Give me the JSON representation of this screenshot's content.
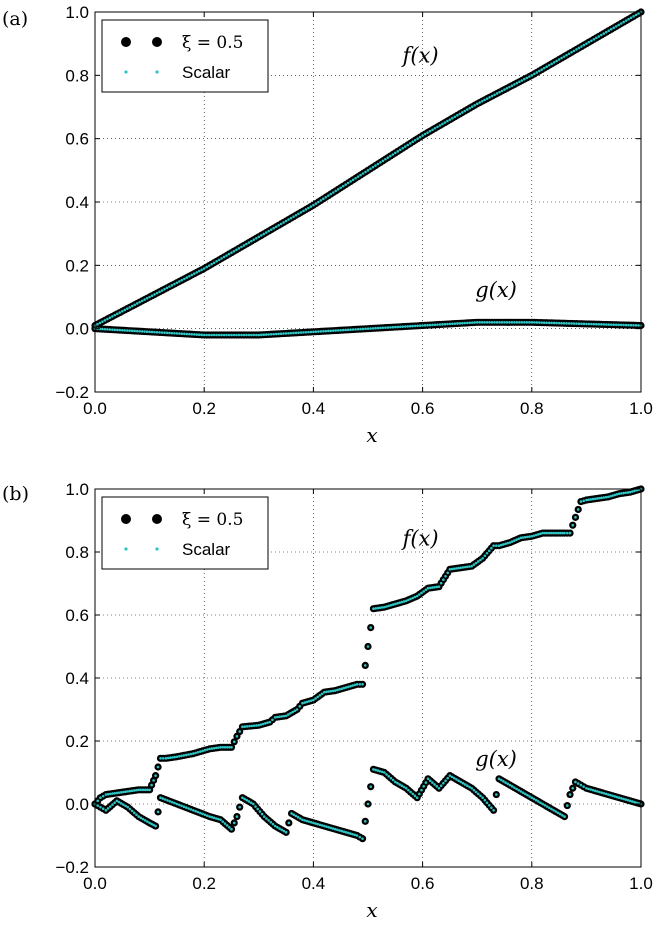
{
  "chart_data": [
    {
      "panel_label": "(a)",
      "type": "scatter",
      "xlabel": "x",
      "ylabel": "",
      "xlim": [
        0.0,
        1.0
      ],
      "ylim": [
        -0.2,
        1.0
      ],
      "x_ticks": [
        "0.0",
        "0.2",
        "0.4",
        "0.6",
        "0.8",
        "1.0"
      ],
      "y_ticks": [
        "−0.2",
        "0.0",
        "0.2",
        "0.4",
        "0.6",
        "0.8",
        "1.0"
      ],
      "grid": true,
      "legend": {
        "placement": "top-left",
        "entries": [
          {
            "label": "ξ = 0.5",
            "marker": "large-black-dot"
          },
          {
            "label": "Scalar",
            "marker": "small-cyan-dot"
          }
        ]
      },
      "annotations": [
        {
          "text": "f(x)",
          "x": 0.6,
          "y": 0.84
        },
        {
          "text": "g(x)",
          "x": 0.7,
          "y": 0.1
        }
      ],
      "colors": {
        "xi": "#000000",
        "scalar": "#2ec4c4"
      },
      "series": [
        {
          "name": "f(x)",
          "x": [
            0.0,
            0.1,
            0.2,
            0.3,
            0.4,
            0.5,
            0.6,
            0.7,
            0.8,
            0.9,
            1.0
          ],
          "y": [
            0.01,
            0.1,
            0.19,
            0.29,
            0.39,
            0.5,
            0.61,
            0.71,
            0.8,
            0.9,
            1.0
          ]
        },
        {
          "name": "g(x)",
          "x": [
            0.0,
            0.1,
            0.2,
            0.3,
            0.4,
            0.5,
            0.6,
            0.7,
            0.8,
            0.9,
            1.0
          ],
          "y": [
            0.0,
            -0.01,
            -0.02,
            -0.02,
            -0.01,
            0.0,
            0.01,
            0.02,
            0.02,
            0.015,
            0.01
          ]
        }
      ]
    },
    {
      "panel_label": "(b)",
      "type": "scatter",
      "xlabel": "x",
      "ylabel": "",
      "xlim": [
        0.0,
        1.0
      ],
      "ylim": [
        -0.2,
        1.0
      ],
      "x_ticks": [
        "0.0",
        "0.2",
        "0.4",
        "0.6",
        "0.8",
        "1.0"
      ],
      "y_ticks": [
        "−0.2",
        "0.0",
        "0.2",
        "0.4",
        "0.6",
        "0.8",
        "1.0"
      ],
      "grid": true,
      "legend": {
        "placement": "top-left",
        "entries": [
          {
            "label": "ξ = 0.5",
            "marker": "large-black-dot"
          },
          {
            "label": "Scalar",
            "marker": "small-cyan-dot"
          }
        ]
      },
      "annotations": [
        {
          "text": "f(x)",
          "x": 0.6,
          "y": 0.82
        },
        {
          "text": "g(x)",
          "x": 0.7,
          "y": 0.12
        }
      ],
      "colors": {
        "xi": "#000000",
        "scalar": "#2ec4c4"
      },
      "series": [
        {
          "name": "f(x)",
          "x": [
            0.0,
            0.01,
            0.02,
            0.04,
            0.06,
            0.08,
            0.1,
            0.111,
            0.12,
            0.13,
            0.15,
            0.18,
            0.21,
            0.23,
            0.25,
            0.26,
            0.27,
            0.3,
            0.32,
            0.33,
            0.35,
            0.37,
            0.38,
            0.4,
            0.42,
            0.44,
            0.46,
            0.48,
            0.49,
            0.5,
            0.51,
            0.53,
            0.55,
            0.57,
            0.59,
            0.61,
            0.63,
            0.65,
            0.67,
            0.69,
            0.71,
            0.73,
            0.74,
            0.76,
            0.78,
            0.8,
            0.82,
            0.84,
            0.86,
            0.87,
            0.88,
            0.89,
            0.9,
            0.92,
            0.94,
            0.96,
            0.98,
            1.0
          ],
          "y": [
            0.0,
            0.02,
            0.03,
            0.035,
            0.04,
            0.045,
            0.045,
            0.09,
            0.145,
            0.145,
            0.15,
            0.16,
            0.175,
            0.18,
            0.18,
            0.215,
            0.245,
            0.25,
            0.26,
            0.275,
            0.28,
            0.3,
            0.32,
            0.33,
            0.355,
            0.36,
            0.37,
            0.38,
            0.38,
            0.5,
            0.62,
            0.625,
            0.635,
            0.645,
            0.66,
            0.685,
            0.69,
            0.745,
            0.75,
            0.755,
            0.78,
            0.82,
            0.82,
            0.83,
            0.845,
            0.85,
            0.86,
            0.86,
            0.86,
            0.86,
            0.91,
            0.96,
            0.965,
            0.97,
            0.975,
            0.985,
            0.99,
            1.0
          ]
        },
        {
          "name": "g(x)",
          "x": [
            0.0,
            0.01,
            0.02,
            0.04,
            0.06,
            0.08,
            0.1,
            0.111,
            0.12,
            0.15,
            0.18,
            0.21,
            0.23,
            0.25,
            0.26,
            0.27,
            0.29,
            0.31,
            0.33,
            0.35,
            0.36,
            0.38,
            0.4,
            0.42,
            0.44,
            0.46,
            0.48,
            0.49,
            0.5,
            0.51,
            0.53,
            0.55,
            0.57,
            0.59,
            0.61,
            0.63,
            0.65,
            0.67,
            0.69,
            0.71,
            0.73,
            0.74,
            0.76,
            0.78,
            0.8,
            0.82,
            0.84,
            0.86,
            0.87,
            0.88,
            0.89,
            0.9,
            0.92,
            0.94,
            0.96,
            0.98,
            1.0
          ],
          "y": [
            0.0,
            -0.01,
            -0.02,
            0.01,
            -0.01,
            -0.04,
            -0.06,
            -0.07,
            0.02,
            0.0,
            -0.02,
            -0.04,
            -0.05,
            -0.08,
            -0.04,
            0.02,
            0.0,
            -0.04,
            -0.07,
            -0.09,
            -0.03,
            -0.05,
            -0.06,
            -0.07,
            -0.08,
            -0.09,
            -0.1,
            -0.11,
            0.0,
            0.11,
            0.1,
            0.07,
            0.05,
            0.02,
            0.08,
            0.05,
            0.09,
            0.07,
            0.05,
            0.02,
            -0.02,
            0.08,
            0.06,
            0.04,
            0.02,
            0.0,
            -0.02,
            -0.04,
            0.03,
            0.07,
            0.06,
            0.05,
            0.04,
            0.03,
            0.02,
            0.01,
            0.0
          ]
        }
      ]
    }
  ]
}
